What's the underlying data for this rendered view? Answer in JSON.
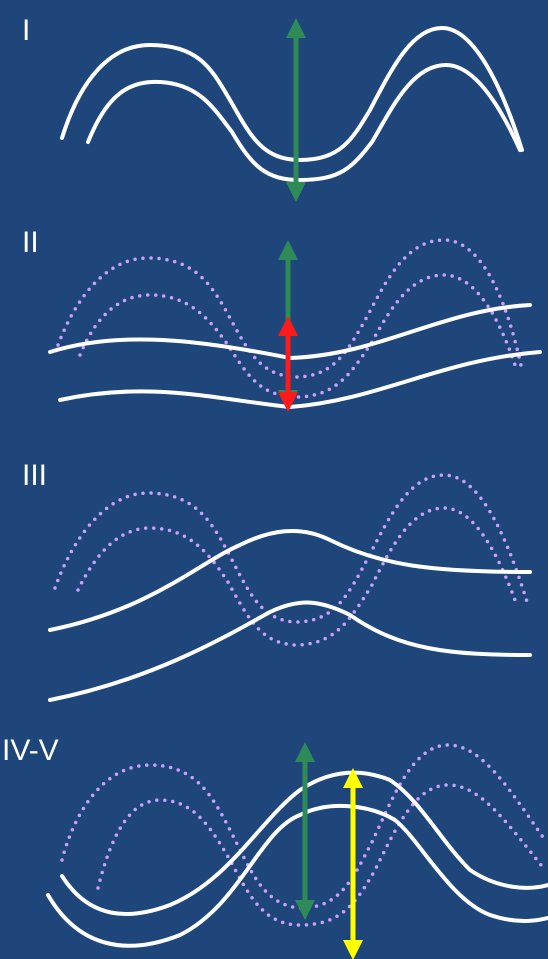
{
  "panels": [
    {
      "label": "I"
    },
    {
      "label": "II"
    },
    {
      "label": "III"
    },
    {
      "label": "IV-V"
    }
  ]
}
